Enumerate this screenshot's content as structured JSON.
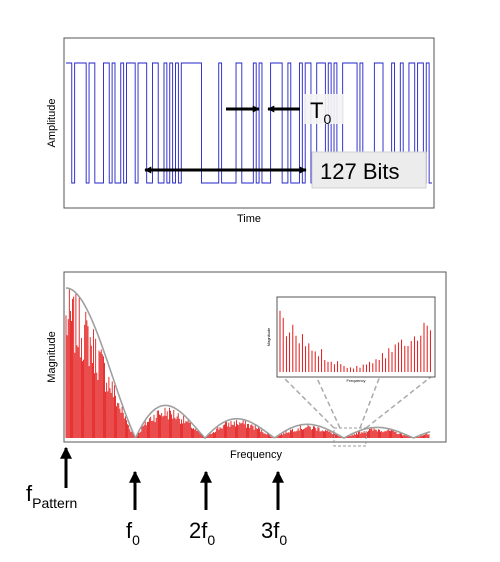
{
  "top_panel": {
    "ylabel": "Amplitude",
    "xlabel": "Time",
    "period_label": {
      "main": "T",
      "sub": "0"
    },
    "length_label": "127 Bits",
    "trace_color": "#2020c8"
  },
  "bottom_panel": {
    "ylabel": "Magnitude",
    "xlabel": "Frequency",
    "spectrum_color": "#e00000",
    "envelope_color": "#a0a0a0",
    "inset": {
      "ylabel": "Magnitude",
      "xlabel": "Frequency"
    }
  },
  "markers": [
    {
      "main": "f",
      "sub": "Pattern"
    },
    {
      "main": "f",
      "sub": "0"
    },
    {
      "main": "2f",
      "sub": "0"
    },
    {
      "main": "3f",
      "sub": "0"
    }
  ]
}
